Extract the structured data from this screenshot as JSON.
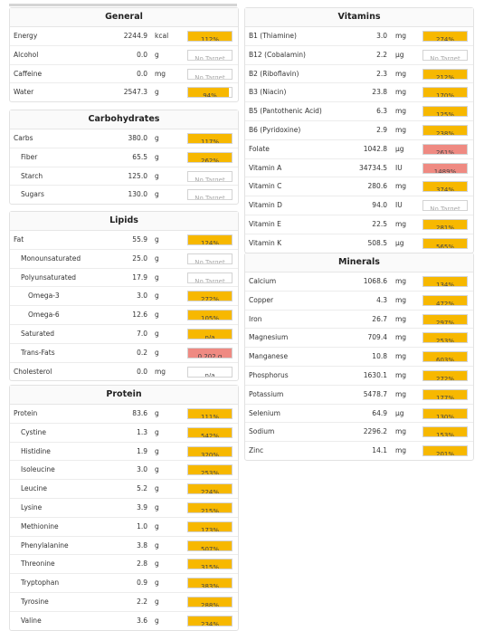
{
  "panels": [
    {
      "id": "general",
      "title": "General",
      "rows": [
        {
          "name": "Energy",
          "value": "2244.9",
          "unit": "kcal",
          "target": "112%",
          "fill": 1,
          "level": 0
        },
        {
          "name": "Alcohol",
          "value": "0.0",
          "unit": "g",
          "target": "No Target",
          "fill": 0,
          "level": 0
        },
        {
          "name": "Caffeine",
          "value": "0.0",
          "unit": "mg",
          "target": "No Target",
          "fill": 0,
          "level": 0
        },
        {
          "name": "Water",
          "value": "2547.3",
          "unit": "g",
          "target": "94%",
          "fill": 0.94,
          "level": 0
        }
      ]
    },
    {
      "id": "carbohydrates",
      "title": "Carbohydrates",
      "rows": [
        {
          "name": "Carbs",
          "value": "380.0",
          "unit": "g",
          "target": "117%",
          "fill": 1,
          "level": 0
        },
        {
          "name": "Fiber",
          "value": "65.5",
          "unit": "g",
          "target": "262%",
          "fill": 1,
          "level": 1
        },
        {
          "name": "Starch",
          "value": "125.0",
          "unit": "g",
          "target": "No Target",
          "fill": 0,
          "level": 1
        },
        {
          "name": "Sugars",
          "value": "130.0",
          "unit": "g",
          "target": "No Target",
          "fill": 0,
          "level": 1
        }
      ]
    },
    {
      "id": "lipids",
      "title": "Lipids",
      "rows": [
        {
          "name": "Fat",
          "value": "55.9",
          "unit": "g",
          "target": "124%",
          "fill": 1,
          "level": 0
        },
        {
          "name": "Monounsaturated",
          "value": "25.0",
          "unit": "g",
          "target": "No Target",
          "fill": 0,
          "level": 1
        },
        {
          "name": "Polyunsaturated",
          "value": "17.9",
          "unit": "g",
          "target": "No Target",
          "fill": 0,
          "level": 1
        },
        {
          "name": "Omega-3",
          "value": "3.0",
          "unit": "g",
          "target": "272%",
          "fill": 1,
          "level": 2
        },
        {
          "name": "Omega-6",
          "value": "12.6",
          "unit": "g",
          "target": "105%",
          "fill": 1,
          "level": 2
        },
        {
          "name": "Saturated",
          "value": "7.0",
          "unit": "g",
          "target": "n/a",
          "fill": 1,
          "level": 1
        },
        {
          "name": "Trans-Fats",
          "value": "0.2",
          "unit": "g",
          "target": "0.202 g",
          "fill": 1,
          "level": 1,
          "hi": true
        },
        {
          "name": "Cholesterol",
          "value": "0.0",
          "unit": "mg",
          "target": "n/a",
          "fill": 0,
          "level": 0,
          "plain": true
        }
      ]
    },
    {
      "id": "protein",
      "title": "Protein",
      "rows": [
        {
          "name": "Protein",
          "value": "83.6",
          "unit": "g",
          "target": "111%",
          "fill": 1,
          "level": 0
        },
        {
          "name": "Cystine",
          "value": "1.3",
          "unit": "g",
          "target": "542%",
          "fill": 1,
          "level": 1
        },
        {
          "name": "Histidine",
          "value": "1.9",
          "unit": "g",
          "target": "320%",
          "fill": 1,
          "level": 1
        },
        {
          "name": "Isoleucine",
          "value": "3.0",
          "unit": "g",
          "target": "253%",
          "fill": 1,
          "level": 1
        },
        {
          "name": "Leucine",
          "value": "5.2",
          "unit": "g",
          "target": "224%",
          "fill": 1,
          "level": 1
        },
        {
          "name": "Lysine",
          "value": "3.9",
          "unit": "g",
          "target": "215%",
          "fill": 1,
          "level": 1
        },
        {
          "name": "Methionine",
          "value": "1.0",
          "unit": "g",
          "target": "173%",
          "fill": 1,
          "level": 1
        },
        {
          "name": "Phenylalanine",
          "value": "3.8",
          "unit": "g",
          "target": "507%",
          "fill": 1,
          "level": 1
        },
        {
          "name": "Threonine",
          "value": "2.8",
          "unit": "g",
          "target": "315%",
          "fill": 1,
          "level": 1
        },
        {
          "name": "Tryptophan",
          "value": "0.9",
          "unit": "g",
          "target": "383%",
          "fill": 1,
          "level": 1
        },
        {
          "name": "Tyrosine",
          "value": "2.2",
          "unit": "g",
          "target": "288%",
          "fill": 1,
          "level": 1
        },
        {
          "name": "Valine",
          "value": "3.6",
          "unit": "g",
          "target": "234%",
          "fill": 1,
          "level": 1
        }
      ]
    },
    {
      "id": "vitamins",
      "title": "Vitamins",
      "rows": [
        {
          "name": "B1 (Thiamine)",
          "value": "3.0",
          "unit": "mg",
          "target": "274%",
          "fill": 1,
          "level": 0
        },
        {
          "name": "B12 (Cobalamin)",
          "value": "2.2",
          "unit": "µg",
          "target": "No Target",
          "fill": 0,
          "level": 0
        },
        {
          "name": "B2 (Riboflavin)",
          "value": "2.3",
          "unit": "mg",
          "target": "212%",
          "fill": 1,
          "level": 0
        },
        {
          "name": "B3 (Niacin)",
          "value": "23.8",
          "unit": "mg",
          "target": "170%",
          "fill": 1,
          "level": 0
        },
        {
          "name": "B5 (Pantothenic Acid)",
          "value": "6.3",
          "unit": "mg",
          "target": "125%",
          "fill": 1,
          "level": 0
        },
        {
          "name": "B6 (Pyridoxine)",
          "value": "2.9",
          "unit": "mg",
          "target": "238%",
          "fill": 1,
          "level": 0
        },
        {
          "name": "Folate",
          "value": "1042.8",
          "unit": "µg",
          "target": "261%",
          "fill": 1,
          "level": 0,
          "hi": true
        },
        {
          "name": "Vitamin A",
          "value": "34734.5",
          "unit": "IU",
          "target": "1489%",
          "fill": 1,
          "level": 0,
          "hi": true
        },
        {
          "name": "Vitamin C",
          "value": "280.6",
          "unit": "mg",
          "target": "374%",
          "fill": 1,
          "level": 0
        },
        {
          "name": "Vitamin D",
          "value": "94.0",
          "unit": "IU",
          "target": "No Target",
          "fill": 0,
          "level": 0
        },
        {
          "name": "Vitamin E",
          "value": "22.5",
          "unit": "mg",
          "target": "281%",
          "fill": 1,
          "level": 0
        },
        {
          "name": "Vitamin K",
          "value": "508.5",
          "unit": "µg",
          "target": "565%",
          "fill": 1,
          "level": 0
        }
      ]
    },
    {
      "id": "minerals",
      "title": "Minerals",
      "rows": [
        {
          "name": "Calcium",
          "value": "1068.6",
          "unit": "mg",
          "target": "134%",
          "fill": 1,
          "level": 0
        },
        {
          "name": "Copper",
          "value": "4.3",
          "unit": "mg",
          "target": "472%",
          "fill": 1,
          "level": 0
        },
        {
          "name": "Iron",
          "value": "26.7",
          "unit": "mg",
          "target": "297%",
          "fill": 1,
          "level": 0
        },
        {
          "name": "Magnesium",
          "value": "709.4",
          "unit": "mg",
          "target": "253%",
          "fill": 1,
          "level": 0
        },
        {
          "name": "Manganese",
          "value": "10.8",
          "unit": "mg",
          "target": "603%",
          "fill": 1,
          "level": 0
        },
        {
          "name": "Phosphorus",
          "value": "1630.1",
          "unit": "mg",
          "target": "272%",
          "fill": 1,
          "level": 0
        },
        {
          "name": "Potassium",
          "value": "5478.7",
          "unit": "mg",
          "target": "177%",
          "fill": 1,
          "level": 0
        },
        {
          "name": "Selenium",
          "value": "64.9",
          "unit": "µg",
          "target": "130%",
          "fill": 1,
          "level": 0
        },
        {
          "name": "Sodium",
          "value": "2296.2",
          "unit": "mg",
          "target": "153%",
          "fill": 1,
          "level": 0
        },
        {
          "name": "Zinc",
          "value": "14.1",
          "unit": "mg",
          "target": "201%",
          "fill": 1,
          "level": 0
        }
      ]
    }
  ]
}
